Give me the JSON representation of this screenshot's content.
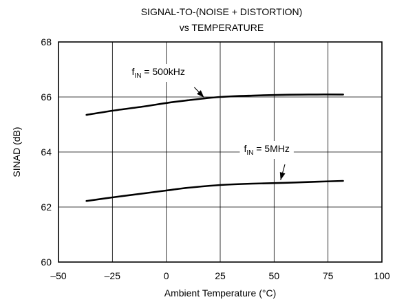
{
  "chart_data": {
    "type": "line",
    "title_lines": [
      "SIGNAL-TO-(NOISE + DISTORTION)",
      "vs TEMPERATURE"
    ],
    "xlabel": "Ambient Temperature (°C)",
    "ylabel": "SINAD (dB)",
    "xlim": [
      -50,
      100
    ],
    "ylim": [
      60,
      68
    ],
    "xticks": [
      -50,
      -25,
      0,
      25,
      50,
      75,
      100
    ],
    "xtick_labels": [
      "–50",
      "–25",
      "0",
      "25",
      "50",
      "75",
      "100"
    ],
    "yticks": [
      60,
      62,
      64,
      66,
      68
    ],
    "ytick_labels": [
      "60",
      "62",
      "64",
      "66",
      "68"
    ],
    "grid": true,
    "series": [
      {
        "x": [
          -37,
          -25,
          -10,
          0,
          10,
          25,
          40,
          55,
          70,
          82
        ],
        "y": [
          65.35,
          65.5,
          65.66,
          65.78,
          65.88,
          66.0,
          66.05,
          66.08,
          66.09,
          66.09
        ]
      },
      {
        "x": [
          -37,
          -25,
          -10,
          0,
          10,
          25,
          40,
          55,
          70,
          82
        ],
        "y": [
          62.22,
          62.35,
          62.5,
          62.6,
          62.7,
          62.8,
          62.85,
          62.88,
          62.92,
          62.95
        ]
      }
    ],
    "annotations": [
      {
        "main": "f",
        "sub": "IN",
        "rest": " = 500kHz",
        "x": -16,
        "y": 66.8,
        "arrow_from": [
          13,
          66.35
        ],
        "arrow_to": [
          17.5,
          65.98
        ]
      },
      {
        "main": "f",
        "sub": "IN",
        "rest": " = 5MHz",
        "x": 36,
        "y": 64.0,
        "arrow_from": [
          55,
          63.55
        ],
        "arrow_to": [
          53,
          62.98
        ]
      }
    ]
  }
}
